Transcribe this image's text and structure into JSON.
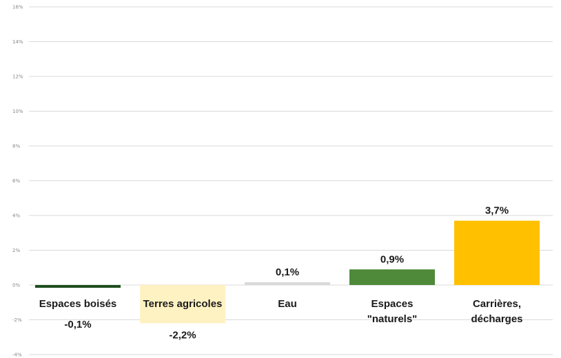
{
  "chart_data": {
    "type": "bar",
    "title": "",
    "xlabel": "",
    "ylabel": "",
    "ylim": [
      -4,
      16
    ],
    "y_ticks": [
      -4,
      -2,
      0,
      2,
      4,
      6,
      8,
      10,
      12,
      14,
      16
    ],
    "y_tick_labels": [
      "-4%",
      "-2%",
      "0%",
      "2%",
      "4%",
      "6%",
      "8%",
      "10%",
      "12%",
      "14%",
      "16%"
    ],
    "grid": true,
    "categories": [
      [
        "Espaces boisés"
      ],
      [
        "Terres agricoles"
      ],
      [
        "Eau"
      ],
      [
        "Espaces",
        "\"naturels\""
      ],
      [
        "Carrières,",
        "décharges"
      ]
    ],
    "values": [
      -0.1,
      -2.2,
      0.1,
      0.9,
      3.7
    ],
    "value_labels": [
      "-0,1%",
      "-2,2%",
      "0,1%",
      "0,9%",
      "3,7%"
    ],
    "colors": [
      "#1e4d1e",
      "#fff2c2",
      "#d9d9d9",
      "#4e8a3a",
      "#ffc000"
    ],
    "gridline_color": "#d9d9d9"
  }
}
